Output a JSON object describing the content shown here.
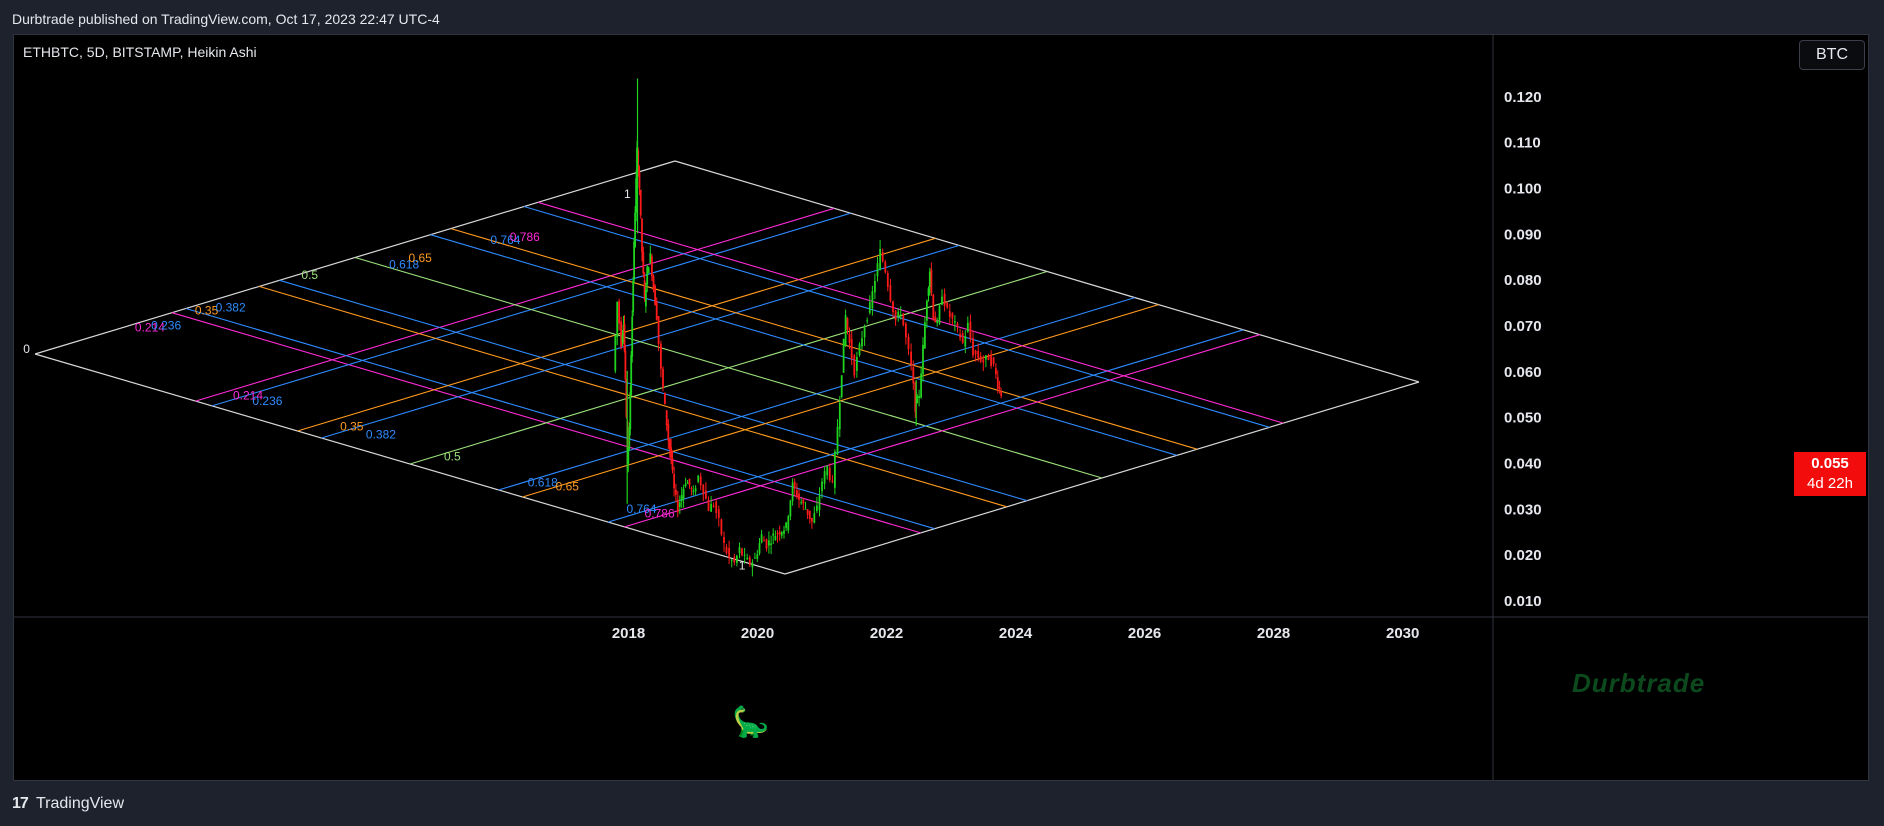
{
  "header": {
    "published_text": "Durbtrade published on TradingView.com, Oct 17, 2023 22:47 UTC-4"
  },
  "symbol": {
    "text": "ETHBTC, 5D, BITSTAMP, Heikin Ashi"
  },
  "currency_button": {
    "label": "BTC"
  },
  "price_badge": {
    "value": "0.055",
    "countdown": "4d 22h"
  },
  "watermark": {
    "text": "Durbtrade"
  },
  "footer": {
    "brand": "TradingView",
    "logo_glyph": "17"
  },
  "colors": {
    "up": "#1fd41f",
    "down": "#ff1a1a",
    "grid_frame": "#d8d8d8",
    "fib_magenta": "#ff2bd6",
    "fib_blue": "#2e8bff",
    "fib_orange": "#ff9a1f",
    "fib_green": "#9be27a",
    "badge": "#f20c0c",
    "axis_text": "#e6e8ee"
  },
  "chart_data": {
    "type": "candlestick",
    "style": "Heikin Ashi",
    "symbol": "ETHBTC",
    "interval": "5D",
    "exchange": "BITSTAMP",
    "y_axis": {
      "ticks": [
        0.01,
        0.02,
        0.03,
        0.04,
        0.05,
        0.06,
        0.07,
        0.08,
        0.09,
        0.1,
        0.11,
        0.12
      ],
      "tick_labels": [
        "0.010",
        "0.020",
        "0.030",
        "0.040",
        "0.050",
        "0.060",
        "0.070",
        "0.080",
        "0.090",
        "0.100",
        "0.110",
        "0.120"
      ],
      "range": [
        0.0065,
        0.1335
      ]
    },
    "x_axis": {
      "ticks": [
        2018,
        2020,
        2022,
        2024,
        2026,
        2028,
        2030
      ],
      "tick_labels": [
        "2018",
        "2020",
        "2022",
        "2024",
        "2026",
        "2028",
        "2030"
      ],
      "range": [
        2008.46,
        2031.4
      ]
    },
    "price_path": [
      [
        2017.78,
        0.06
      ],
      [
        2017.84,
        0.075
      ],
      [
        2017.9,
        0.066
      ],
      [
        2017.93,
        0.071
      ],
      [
        2017.96,
        0.058
      ],
      [
        2017.99,
        0.04
      ],
      [
        2018.02,
        0.047
      ],
      [
        2018.05,
        0.064
      ],
      [
        2018.08,
        0.08
      ],
      [
        2018.11,
        0.095
      ],
      [
        2018.14,
        0.108
      ],
      [
        2018.18,
        0.1
      ],
      [
        2018.22,
        0.086
      ],
      [
        2018.26,
        0.075
      ],
      [
        2018.3,
        0.082
      ],
      [
        2018.35,
        0.085
      ],
      [
        2018.4,
        0.078
      ],
      [
        2018.45,
        0.072
      ],
      [
        2018.52,
        0.06
      ],
      [
        2018.58,
        0.052
      ],
      [
        2018.63,
        0.045
      ],
      [
        2018.67,
        0.041
      ],
      [
        2018.72,
        0.034
      ],
      [
        2018.78,
        0.03
      ],
      [
        2018.84,
        0.033
      ],
      [
        2018.9,
        0.036
      ],
      [
        2018.96,
        0.035
      ],
      [
        2019.02,
        0.033
      ],
      [
        2019.1,
        0.037
      ],
      [
        2019.18,
        0.034
      ],
      [
        2019.26,
        0.03
      ],
      [
        2019.34,
        0.031
      ],
      [
        2019.42,
        0.027
      ],
      [
        2019.5,
        0.022
      ],
      [
        2019.58,
        0.019
      ],
      [
        2019.66,
        0.018
      ],
      [
        2019.74,
        0.021
      ],
      [
        2019.82,
        0.019
      ],
      [
        2019.9,
        0.018
      ],
      [
        2019.98,
        0.019
      ],
      [
        2020.08,
        0.024
      ],
      [
        2020.16,
        0.022
      ],
      [
        2020.26,
        0.024
      ],
      [
        2020.36,
        0.025
      ],
      [
        2020.46,
        0.026
      ],
      [
        2020.56,
        0.035
      ],
      [
        2020.66,
        0.032
      ],
      [
        2020.76,
        0.03
      ],
      [
        2020.86,
        0.027
      ],
      [
        2020.94,
        0.03
      ],
      [
        2021.02,
        0.036
      ],
      [
        2021.1,
        0.039
      ],
      [
        2021.18,
        0.035
      ],
      [
        2021.26,
        0.048
      ],
      [
        2021.32,
        0.06
      ],
      [
        2021.38,
        0.072
      ],
      [
        2021.44,
        0.066
      ],
      [
        2021.52,
        0.06
      ],
      [
        2021.6,
        0.065
      ],
      [
        2021.68,
        0.07
      ],
      [
        2021.76,
        0.074
      ],
      [
        2021.84,
        0.08
      ],
      [
        2021.92,
        0.086
      ],
      [
        2022.0,
        0.082
      ],
      [
        2022.08,
        0.076
      ],
      [
        2022.16,
        0.071
      ],
      [
        2022.24,
        0.073
      ],
      [
        2022.32,
        0.067
      ],
      [
        2022.4,
        0.061
      ],
      [
        2022.46,
        0.052
      ],
      [
        2022.52,
        0.055
      ],
      [
        2022.58,
        0.065
      ],
      [
        2022.64,
        0.076
      ],
      [
        2022.68,
        0.082
      ],
      [
        2022.74,
        0.072
      ],
      [
        2022.8,
        0.07
      ],
      [
        2022.88,
        0.077
      ],
      [
        2022.96,
        0.073
      ],
      [
        2023.04,
        0.071
      ],
      [
        2023.12,
        0.069
      ],
      [
        2023.2,
        0.066
      ],
      [
        2023.28,
        0.07
      ],
      [
        2023.36,
        0.064
      ],
      [
        2023.44,
        0.063
      ],
      [
        2023.52,
        0.062
      ],
      [
        2023.6,
        0.063
      ],
      [
        2023.68,
        0.061
      ],
      [
        2023.74,
        0.057
      ],
      [
        2023.79,
        0.055
      ]
    ],
    "fib_fans": [
      {
        "labels": [
          {
            "text": "0",
            "price": 0.0639,
            "time": 2008.62,
            "color": "#e6e8ee"
          },
          {
            "text": "1",
            "price": 0.0977,
            "time": 2017.93,
            "color": "#e6e8ee"
          },
          {
            "text": "0.214",
            "price": 0.0686,
            "time": 2010.35,
            "color": "#ff2bd6"
          },
          {
            "text": "0.236",
            "price": 0.069,
            "time": 2010.6,
            "color": "#2e8bff"
          },
          {
            "text": "0.35",
            "price": 0.0723,
            "time": 2011.28,
            "color": "#ff9a1f"
          },
          {
            "text": "0.382",
            "price": 0.0729,
            "time": 2011.6,
            "color": "#2e8bff"
          },
          {
            "text": "0.5",
            "price": 0.08,
            "time": 2012.93,
            "color": "#9be27a"
          },
          {
            "text": "0.618",
            "price": 0.0823,
            "time": 2014.29,
            "color": "#2e8bff"
          },
          {
            "text": "0.65",
            "price": 0.0837,
            "time": 2014.59,
            "color": "#ff9a1f"
          },
          {
            "text": "0.764",
            "price": 0.0877,
            "time": 2015.86,
            "color": "#2e8bff"
          },
          {
            "text": "0.786",
            "price": 0.0883,
            "time": 2016.16,
            "color": "#ff2bd6"
          }
        ]
      },
      {
        "labels": [
          {
            "text": "1",
            "price": 0.0166,
            "time": 2019.71,
            "color": "#e6e8ee"
          },
          {
            "text": "0.214",
            "price": 0.0537,
            "time": 2011.87,
            "color": "#ff2bd6"
          },
          {
            "text": "0.236",
            "price": 0.0525,
            "time": 2012.17,
            "color": "#2e8bff"
          },
          {
            "text": "0.35",
            "price": 0.047,
            "time": 2013.53,
            "color": "#ff9a1f"
          },
          {
            "text": "0.382",
            "price": 0.0452,
            "time": 2013.93,
            "color": "#2e8bff"
          },
          {
            "text": "0.5",
            "price": 0.0404,
            "time": 2015.14,
            "color": "#9be27a"
          },
          {
            "text": "0.618",
            "price": 0.0348,
            "time": 2016.44,
            "color": "#2e8bff"
          },
          {
            "text": "0.65",
            "price": 0.0339,
            "time": 2016.87,
            "color": "#ff9a1f"
          },
          {
            "text": "0.764",
            "price": 0.029,
            "time": 2017.97,
            "color": "#2e8bff"
          },
          {
            "text": "0.786",
            "price": 0.028,
            "time": 2018.25,
            "color": "#ff2bd6"
          }
        ]
      }
    ]
  }
}
